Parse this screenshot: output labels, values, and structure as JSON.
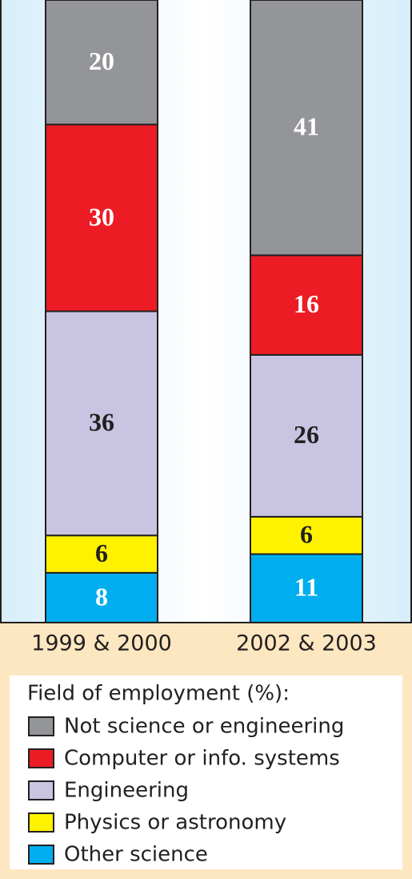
{
  "chart_data": {
    "type": "stacked-bar",
    "categories": [
      "1999 & 2000",
      "2002 & 2003"
    ],
    "legend_title": "Field of employment (%):",
    "series": [
      {
        "name": "Not science or engineering",
        "color": "#939598",
        "values": [
          20,
          41
        ]
      },
      {
        "name": "Computer or info. systems",
        "color": "#ed1c24",
        "values": [
          30,
          16
        ]
      },
      {
        "name": "Engineering",
        "color": "#c8c4e2",
        "values": [
          36,
          26
        ]
      },
      {
        "name": "Physics or astronomy",
        "color": "#fff200",
        "values": [
          6,
          6
        ]
      },
      {
        "name": "Other science",
        "color": "#00aeef",
        "values": [
          8,
          11
        ]
      }
    ],
    "ylim": [
      0,
      100
    ]
  }
}
